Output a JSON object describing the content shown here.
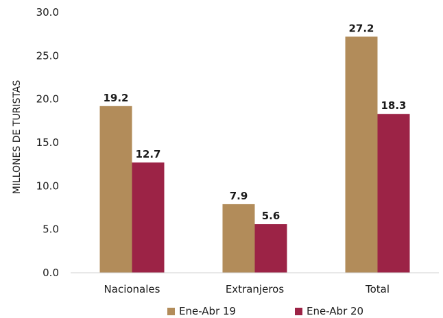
{
  "chart_data": {
    "type": "bar",
    "title": "",
    "xlabel": "",
    "ylabel": "MILLONES DE TURISTAS",
    "ylim": [
      0,
      30
    ],
    "yticks": [
      "0.0",
      "5.0",
      "10.0",
      "15.0",
      "20.0",
      "25.0",
      "30.0"
    ],
    "categories": [
      "Nacionales",
      "Extranjeros",
      "Total"
    ],
    "series": [
      {
        "name": "Ene-Abr 19",
        "color": "#B28C5A",
        "values": [
          19.2,
          7.9,
          27.2
        ],
        "labels": [
          "19.2",
          "7.9",
          "27.2"
        ]
      },
      {
        "name": "Ene-Abr 20",
        "color": "#9C2346",
        "values": [
          12.7,
          5.6,
          18.3
        ],
        "labels": [
          "12.7",
          "5.6",
          "18.3"
        ]
      }
    ],
    "grid": false,
    "legend_position": "bottom"
  }
}
